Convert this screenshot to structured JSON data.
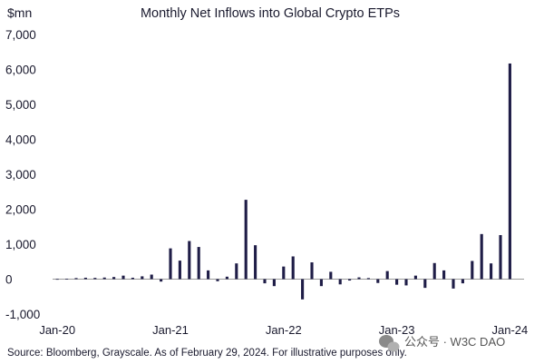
{
  "chart_data": {
    "type": "bar",
    "title": "Monthly Net Inflows into Global Crypto ETPs",
    "unit_label": "$mn",
    "ylim": [
      -1000,
      7000
    ],
    "yticks": [
      "7,000",
      "6,000",
      "5,000",
      "4,000",
      "3,000",
      "2,000",
      "1,000",
      "0",
      "-1,000"
    ],
    "ytick_values": [
      7000,
      6000,
      5000,
      4000,
      3000,
      2000,
      1000,
      0,
      -1000
    ],
    "xtick_labels": [
      "Jan-20",
      "Jan-21",
      "Jan-22",
      "Jan-23",
      "Jan-24"
    ],
    "xtick_indices": [
      0,
      12,
      24,
      36,
      48
    ],
    "bar_color": "#1f1d47",
    "categories": [
      "2020-01",
      "2020-02",
      "2020-03",
      "2020-04",
      "2020-05",
      "2020-06",
      "2020-07",
      "2020-08",
      "2020-09",
      "2020-10",
      "2020-11",
      "2020-12",
      "2021-01",
      "2021-02",
      "2021-03",
      "2021-04",
      "2021-05",
      "2021-06",
      "2021-07",
      "2021-08",
      "2021-09",
      "2021-10",
      "2021-11",
      "2021-12",
      "2022-01",
      "2022-02",
      "2022-03",
      "2022-04",
      "2022-05",
      "2022-06",
      "2022-07",
      "2022-08",
      "2022-09",
      "2022-10",
      "2022-11",
      "2022-12",
      "2023-01",
      "2023-02",
      "2023-03",
      "2023-04",
      "2023-05",
      "2023-06",
      "2023-07",
      "2023-08",
      "2023-09",
      "2023-10",
      "2023-11",
      "2023-12",
      "2024-01",
      "2024-02"
    ],
    "values": [
      5,
      10,
      30,
      40,
      35,
      45,
      60,
      100,
      40,
      80,
      130,
      -70,
      880,
      530,
      1090,
      920,
      250,
      -60,
      70,
      450,
      2270,
      970,
      -120,
      -200,
      360,
      650,
      -580,
      480,
      -200,
      210,
      -150,
      -40,
      50,
      30,
      -110,
      230,
      -160,
      -180,
      100,
      -250,
      460,
      250,
      -270,
      -120,
      520,
      1290,
      450,
      1260,
      6170,
      0
    ],
    "grid": false
  },
  "footer": {
    "source": "Source: Bloomberg, Grayscale. As of February 29, 2024. For illustrative purposes only."
  },
  "watermark": {
    "text": "公众号 · W3C DAO",
    "icon": "wechat-icon"
  }
}
